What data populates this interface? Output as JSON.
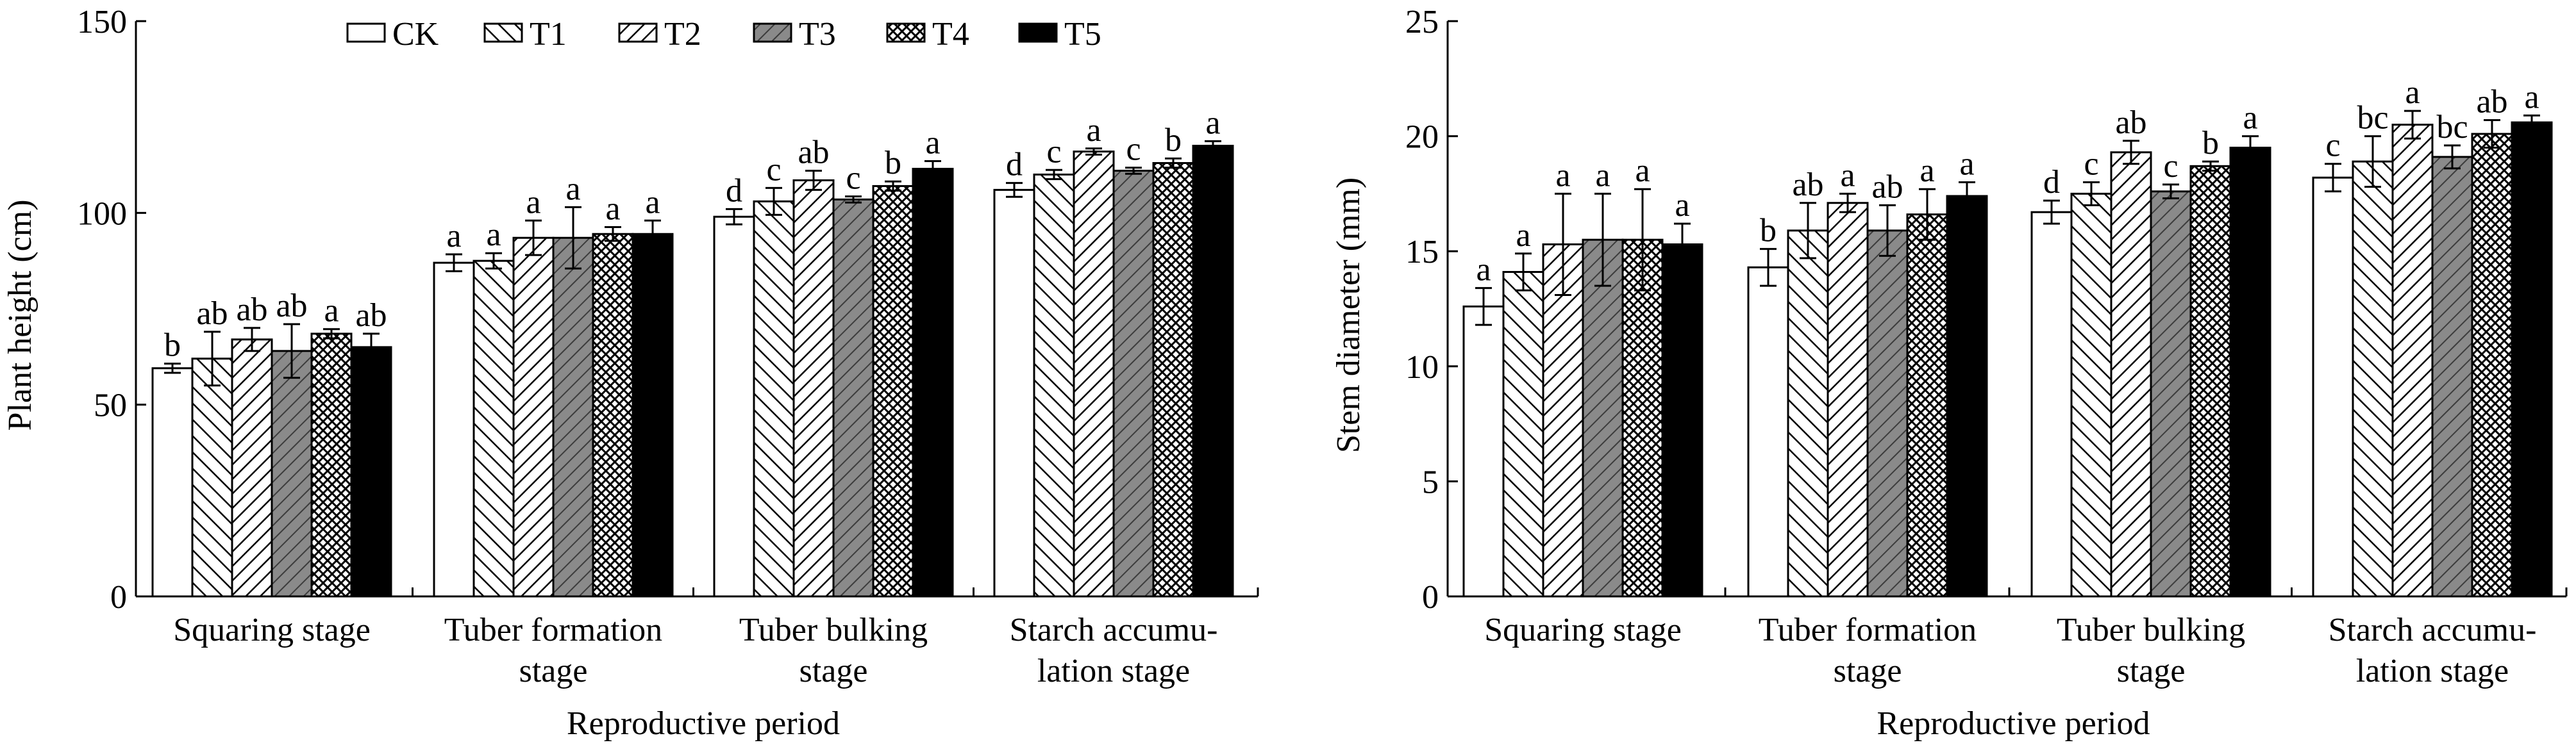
{
  "legend": [
    "CK",
    "T1",
    "T2",
    "T3",
    "T4",
    "T5"
  ],
  "chart_data": [
    {
      "type": "bar",
      "xlabel": "Reproductive period",
      "ylabel": "Plant height (cm)",
      "ylim": [
        0,
        150
      ],
      "yticks": [
        "0",
        "50",
        "100",
        "150"
      ],
      "category_labels": [
        [
          "Squaring stage"
        ],
        [
          "Tuber formation",
          "stage"
        ],
        [
          "Tuber bulking",
          "stage"
        ],
        [
          "Starch accumu-",
          "lation stage"
        ]
      ],
      "legend_placement": "top",
      "series": [
        {
          "name": "CK",
          "values": [
            59.5,
            87,
            99,
            106
          ],
          "errors": [
            1.2,
            2.2,
            2.0,
            1.8
          ],
          "letters": [
            "b",
            "a",
            "d",
            "d"
          ]
        },
        {
          "name": "T1",
          "values": [
            62,
            87.5,
            103,
            110
          ],
          "errors": [
            7,
            2,
            3.5,
            1.2
          ],
          "letters": [
            "ab",
            "a",
            "c",
            "c"
          ]
        },
        {
          "name": "T2",
          "values": [
            67,
            93.5,
            108.5,
            116
          ],
          "errors": [
            3,
            4.5,
            2.5,
            0.8
          ],
          "letters": [
            "ab",
            "a",
            "ab",
            "a"
          ]
        },
        {
          "name": "T3",
          "values": [
            64,
            93.5,
            103.5,
            111
          ],
          "errors": [
            7,
            8,
            0.8,
            0.8
          ],
          "letters": [
            "ab",
            "a",
            "c",
            "c"
          ]
        },
        {
          "name": "T4",
          "values": [
            68.5,
            94.5,
            107,
            113
          ],
          "errors": [
            1.2,
            1.8,
            1.2,
            1.2
          ],
          "letters": [
            "a",
            "a",
            "b",
            "b"
          ]
        },
        {
          "name": "T5",
          "values": [
            65,
            94.5,
            111.5,
            117.5
          ],
          "errors": [
            3.5,
            3.5,
            2.0,
            1.2
          ],
          "letters": [
            "ab",
            "a",
            "a",
            "a"
          ]
        }
      ]
    },
    {
      "type": "bar",
      "xlabel": "Reproductive period",
      "ylabel": "Stem diameter (mm)",
      "ylim": [
        0,
        25
      ],
      "yticks": [
        "0",
        "5",
        "10",
        "15",
        "20",
        "25"
      ],
      "category_labels": [
        [
          "Squaring stage"
        ],
        [
          "Tuber formation",
          "stage"
        ],
        [
          "Tuber bulking",
          "stage"
        ],
        [
          "Starch accumu-",
          "lation stage"
        ]
      ],
      "series": [
        {
          "name": "CK",
          "values": [
            12.6,
            14.3,
            16.7,
            18.2
          ],
          "errors": [
            0.8,
            0.8,
            0.5,
            0.6
          ],
          "letters": [
            "a",
            "b",
            "d",
            "c"
          ]
        },
        {
          "name": "T1",
          "values": [
            14.1,
            15.9,
            17.5,
            18.9
          ],
          "errors": [
            0.8,
            1.2,
            0.5,
            1.1
          ],
          "letters": [
            "a",
            "ab",
            "c",
            "bc"
          ]
        },
        {
          "name": "T2",
          "values": [
            15.3,
            17.1,
            19.3,
            20.5
          ],
          "errors": [
            2.2,
            0.4,
            0.5,
            0.6
          ],
          "letters": [
            "a",
            "a",
            "ab",
            "a"
          ]
        },
        {
          "name": "T3",
          "values": [
            15.5,
            15.9,
            17.6,
            19.1
          ],
          "errors": [
            2.0,
            1.1,
            0.3,
            0.5
          ],
          "letters": [
            "a",
            "ab",
            "c",
            "bc"
          ]
        },
        {
          "name": "T4",
          "values": [
            15.5,
            16.6,
            18.7,
            20.1
          ],
          "errors": [
            2.2,
            1.1,
            0.2,
            0.6
          ],
          "letters": [
            "a",
            "a",
            "b",
            "ab"
          ]
        },
        {
          "name": "T5",
          "values": [
            15.3,
            17.4,
            19.5,
            20.6
          ],
          "errors": [
            0.9,
            0.6,
            0.5,
            0.3
          ],
          "letters": [
            "a",
            "a",
            "a",
            "a"
          ]
        }
      ]
    }
  ]
}
